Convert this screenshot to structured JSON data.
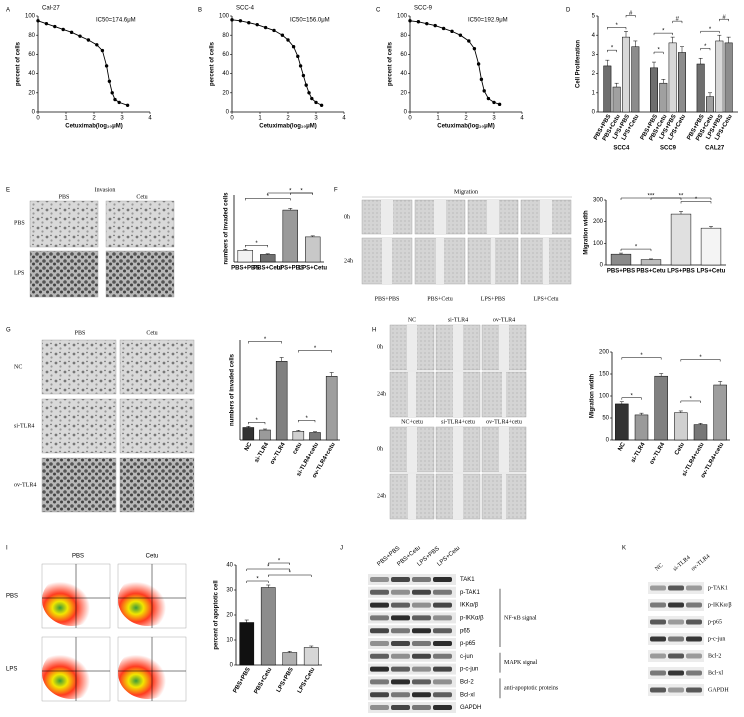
{
  "chart_data": [
    {
      "type": "line",
      "title": "Cal-27",
      "annotation": "IC50=174.6μM",
      "xlabel": "Cetuximab(log₁₀μM)",
      "ylabel": "percent of cells",
      "color": "#000000",
      "x": [
        0,
        0.3,
        0.6,
        0.9,
        1.2,
        1.5,
        1.8,
        2.1,
        2.3,
        2.45,
        2.55,
        2.65,
        2.75,
        2.9,
        3.2
      ],
      "values": [
        95,
        92,
        89,
        86,
        83,
        79,
        75,
        70,
        64,
        48,
        32,
        20,
        13,
        10,
        7
      ],
      "xlim": [
        0,
        4
      ],
      "xticks": [
        0,
        1,
        2,
        3,
        4
      ],
      "ylim": [
        0,
        100
      ],
      "yticks": [
        0,
        20,
        40,
        60,
        80,
        100
      ]
    },
    {
      "type": "line",
      "title": "SCC-4",
      "annotation": "IC50=156.0μM",
      "xlabel": "Cetuximab(log₁₀μM)",
      "ylabel": "percent of cells",
      "color": "#000000",
      "x": [
        0,
        0.3,
        0.6,
        0.9,
        1.2,
        1.5,
        1.8,
        2.0,
        2.2,
        2.35,
        2.45,
        2.55,
        2.65,
        2.75,
        2.85,
        3.0,
        3.2
      ],
      "values": [
        96,
        95,
        93,
        91,
        88,
        85,
        80,
        75,
        68,
        58,
        48,
        38,
        28,
        20,
        14,
        10,
        7
      ],
      "xlim": [
        0,
        4
      ],
      "xticks": [
        0,
        1,
        2,
        3,
        4
      ],
      "ylim": [
        0,
        100
      ],
      "yticks": [
        0,
        20,
        40,
        60,
        80,
        100
      ]
    },
    {
      "type": "line",
      "title": "SCC-9",
      "annotation": "IC50=192.9μM",
      "xlabel": "Cetuximab(log₁₀μM)",
      "ylabel": "percent of cells",
      "color": "#000000",
      "x": [
        0,
        0.3,
        0.6,
        0.9,
        1.2,
        1.5,
        1.8,
        2.1,
        2.3,
        2.45,
        2.55,
        2.65,
        2.8,
        3.0,
        3.2
      ],
      "values": [
        95,
        94,
        92,
        90,
        87,
        84,
        80,
        74,
        66,
        50,
        34,
        22,
        14,
        10,
        8
      ],
      "xlim": [
        0,
        4
      ],
      "xticks": [
        0,
        1,
        2,
        3,
        4
      ],
      "ylim": [
        0,
        100
      ],
      "yticks": [
        0,
        20,
        40,
        60,
        80,
        100
      ]
    },
    {
      "type": "grouped-bar",
      "ylabel": "Cell Proliferation",
      "categories": [
        "SCC4",
        "SCC9",
        "CAL27"
      ],
      "series": [
        {
          "name": "PBS+PBS",
          "color": "#6e6e6e",
          "values": [
            2.4,
            2.3,
            2.5
          ],
          "errors": [
            0.3,
            0.3,
            0.3
          ]
        },
        {
          "name": "PBS+Cetu",
          "color": "#a0a0a0",
          "values": [
            1.3,
            1.5,
            0.8
          ],
          "errors": [
            0.2,
            0.2,
            0.2
          ]
        },
        {
          "name": "LPS+PBS",
          "color": "#d8d8d8",
          "values": [
            3.9,
            3.6,
            3.7
          ],
          "errors": [
            0.3,
            0.3,
            0.3
          ]
        },
        {
          "name": "LPS+Cetu",
          "color": "#8c8c8c",
          "values": [
            3.4,
            3.1,
            3.6
          ],
          "errors": [
            0.3,
            0.3,
            0.3
          ]
        }
      ],
      "significance": [
        {
          "group": 0,
          "from": 0,
          "to": 2,
          "label": "*"
        },
        {
          "group": 0,
          "from": 0,
          "to": 1,
          "label": "*"
        },
        {
          "group": 0,
          "from": 2,
          "to": 3,
          "label": "#"
        },
        {
          "group": 1,
          "from": 0,
          "to": 2,
          "label": "*"
        },
        {
          "group": 1,
          "from": 0,
          "to": 1,
          "label": "*"
        },
        {
          "group": 1,
          "from": 2,
          "to": 3,
          "label": "#"
        },
        {
          "group": 2,
          "from": 0,
          "to": 2,
          "label": "*"
        },
        {
          "group": 2,
          "from": 0,
          "to": 1,
          "label": "*"
        },
        {
          "group": 2,
          "from": 2,
          "to": 3,
          "label": "#"
        }
      ],
      "ylim": [
        0,
        5
      ],
      "yticks": [
        0,
        1,
        2,
        3,
        4,
        5
      ]
    },
    {
      "type": "bar",
      "ylabel": "numbers of invaded cells",
      "categories": [
        "PBS+PBS",
        "PBS+Cetu",
        "LPS+PBS",
        "LPS+Cetu"
      ],
      "values": [
        70,
        45,
        310,
        150
      ],
      "errors": [
        6,
        4,
        10,
        6
      ],
      "colors": [
        "#f2f2f2",
        "#707070",
        "#9a9a9a",
        "#c8c8c8"
      ],
      "significance": [
        {
          "from": 0,
          "to": 1,
          "label": "*"
        },
        {
          "from": 0,
          "to": 2,
          "label": "*"
        },
        {
          "from": 2,
          "to": 3,
          "label": "*"
        },
        {
          "from": 1,
          "to": 3,
          "label": "*"
        }
      ],
      "ylim": [
        0,
        400
      ]
    },
    {
      "type": "bar",
      "ylabel": "Migration width",
      "categories": [
        "PBS+PBS",
        "PBS+Cetu",
        "LPS+PBS",
        "LPS+Cetu"
      ],
      "values": [
        50,
        25,
        235,
        170
      ],
      "errors": [
        5,
        3,
        12,
        8
      ],
      "colors": [
        "#8a8a8a",
        "#bdbdbd",
        "#e0e0e0",
        "#f4f4f4"
      ],
      "significance": [
        {
          "from": 0,
          "to": 1,
          "label": "*"
        },
        {
          "from": 2,
          "to": 3,
          "label": "*"
        },
        {
          "from": 1,
          "to": 3,
          "label": "**"
        },
        {
          "from": 0,
          "to": 2,
          "label": "***"
        }
      ],
      "ylim": [
        0,
        300
      ],
      "yticks": [
        0,
        100,
        200,
        300
      ]
    },
    {
      "type": "bar",
      "ylabel": "numbers of invaded cells",
      "categories": [
        "NC",
        "si-TLR4",
        "ov-TLR4",
        "cetu",
        "si-TLR4+cetu",
        "ov-TLR4+cetu"
      ],
      "values": [
        100,
        80,
        630,
        70,
        60,
        510
      ],
      "errors": [
        10,
        8,
        30,
        8,
        6,
        30
      ],
      "colors": [
        "#333333",
        "#9a9a9a",
        "#808080",
        "#d0d0d0",
        "#777777",
        "#9e9e9e"
      ],
      "significance": [
        {
          "from": 0,
          "to": 1,
          "label": "*"
        },
        {
          "from": 3,
          "to": 4,
          "label": "*"
        },
        {
          "from": 0,
          "to": 2,
          "label": "*"
        },
        {
          "from": 3,
          "to": 5,
          "label": "*"
        }
      ],
      "ylim": [
        0,
        800
      ]
    },
    {
      "type": "bar",
      "ylabel": "Migration width",
      "categories": [
        "NC",
        "si-TLR4",
        "ov-TLR4",
        "Cetu",
        "si-TLR4+cetu",
        "ov-TLR4+cetu"
      ],
      "values": [
        82,
        57,
        145,
        62,
        35,
        125
      ],
      "errors": [
        5,
        4,
        6,
        4,
        3,
        8
      ],
      "colors": [
        "#333333",
        "#9a9a9a",
        "#808080",
        "#d0d0d0",
        "#777777",
        "#9e9e9e"
      ],
      "significance": [
        {
          "from": 0,
          "to": 1,
          "label": "*"
        },
        {
          "from": 3,
          "to": 4,
          "label": "*"
        },
        {
          "from": 0,
          "to": 2,
          "label": "*"
        },
        {
          "from": 3,
          "to": 5,
          "label": "*"
        }
      ],
      "ylim": [
        0,
        200
      ],
      "yticks": [
        0,
        50,
        100,
        150,
        200
      ]
    },
    {
      "type": "bar",
      "ylabel": "percent of apoptotic cell",
      "categories": [
        "PBS+PBS",
        "PBS+Cetu",
        "LPS+PBS",
        "LPS+Cetu"
      ],
      "values": [
        17,
        31,
        5,
        7
      ],
      "errors": [
        1,
        1,
        0.5,
        0.6
      ],
      "colors": [
        "#111111",
        "#8c8c8c",
        "#b0b0b0",
        "#d6d6d6"
      ],
      "significance": [
        {
          "from": 0,
          "to": 1,
          "label": "*"
        },
        {
          "from": 1,
          "to": 3,
          "label": "*"
        },
        {
          "from": 0,
          "to": 2,
          "label": "*"
        },
        {
          "from": 1,
          "to": 2,
          "label": "*"
        }
      ],
      "ylim": [
        0,
        40
      ],
      "yticks": [
        0,
        10,
        20,
        30,
        40
      ]
    }
  ],
  "figure": {
    "letters": [
      "A",
      "B",
      "C",
      "D",
      "E",
      "F",
      "G",
      "H",
      "I",
      "J",
      "K"
    ],
    "invasion": {
      "title": "Invasion",
      "columns": [
        "PBS",
        "Cetu"
      ],
      "rows": [
        "PBS",
        "LPS"
      ]
    },
    "migration": {
      "title": "Migration",
      "rows": [
        "0h",
        "24h"
      ],
      "columns": [
        "PBS+PBS",
        "PBS+Cetu",
        "LPS+PBS",
        "LPS+Cetu"
      ]
    },
    "tlr4_invasion": {
      "columns": [
        "PBS",
        "Cetu"
      ],
      "rows": [
        "NC",
        "si-TLR4",
        "ov-TLR4"
      ]
    },
    "tlr4_migration": {
      "tiles": [
        "NC",
        "si-TLR4",
        "ov-TLR4",
        "NC+cetu",
        "si-TLR4+cetu",
        "ov-TLR4+cetu"
      ],
      "rows": [
        "0h",
        "24h"
      ]
    },
    "flow": {
      "columns": [
        "PBS",
        "Cetu"
      ],
      "rows": [
        "PBS",
        "LPS"
      ]
    },
    "blot_j": {
      "lanes": [
        "PBS+PBS",
        "PBS+Cetu",
        "LPS+PBS",
        "LPS+Cetu"
      ],
      "proteins": [
        "TAK1",
        "p-TAK1",
        "IKKα/β",
        "p-IKKα/β",
        "p65",
        "p-p65",
        "c-jun",
        "p-c-jun",
        "Bcl-2",
        "Bcl-xl",
        "GAPDH"
      ],
      "groups": [
        "NF-κB signal",
        "MAPK signal",
        "anti-apoptotic proteins"
      ]
    },
    "blot_k": {
      "lanes": [
        "NC",
        "si-TLR4",
        "ov-TLR4"
      ],
      "proteins": [
        "p-TAK1",
        "p-IKKα/β",
        "p-p65",
        "p-c-jun",
        "Bcl-2",
        "Bcl-xl",
        "GAPDH"
      ]
    }
  }
}
